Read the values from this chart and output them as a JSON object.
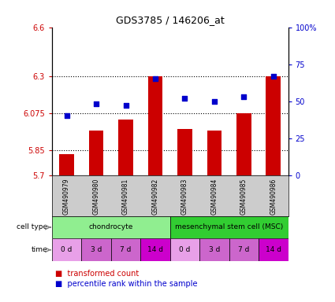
{
  "title": "GDS3785 / 146206_at",
  "samples": [
    "GSM490979",
    "GSM490980",
    "GSM490981",
    "GSM490982",
    "GSM490983",
    "GSM490984",
    "GSM490985",
    "GSM490986"
  ],
  "transformed_count": [
    5.83,
    5.97,
    6.04,
    6.3,
    5.98,
    5.97,
    6.075,
    6.3
  ],
  "percentile_rank": [
    40,
    48,
    47,
    65,
    52,
    50,
    53,
    67
  ],
  "ylim": [
    5.7,
    6.6
  ],
  "yticks": [
    5.7,
    5.85,
    6.075,
    6.3,
    6.6
  ],
  "ytick_labels": [
    "5.7",
    "5.85",
    "6.075",
    "6.3",
    "6.6"
  ],
  "y2lim": [
    0,
    100
  ],
  "y2ticks": [
    0,
    25,
    50,
    75,
    100
  ],
  "y2tick_labels": [
    "0",
    "25",
    "50",
    "75",
    "100%"
  ],
  "cell_types": [
    {
      "label": "chondrocyte",
      "color": "#90ee90",
      "span": [
        0,
        4
      ]
    },
    {
      "label": "mesenchymal stem cell (MSC)",
      "color": "#32cd32",
      "span": [
        4,
        8
      ]
    }
  ],
  "time_labels": [
    "0 d",
    "3 d",
    "7 d",
    "14 d",
    "0 d",
    "3 d",
    "7 d",
    "14 d"
  ],
  "time_colors": [
    "#e8a0e8",
    "#cc66cc",
    "#cc66cc",
    "#cc00cc",
    "#e8a0e8",
    "#cc66cc",
    "#cc66cc",
    "#cc00cc"
  ],
  "bar_color": "#cc0000",
  "dot_color": "#0000cc",
  "bar_baseline": 5.7,
  "bg_color": "#ffffff",
  "label_color_left": "#cc0000",
  "label_color_right": "#0000cc",
  "dotted_lines": [
    5.85,
    6.075,
    6.3
  ],
  "gsm_bg": "#cccccc"
}
